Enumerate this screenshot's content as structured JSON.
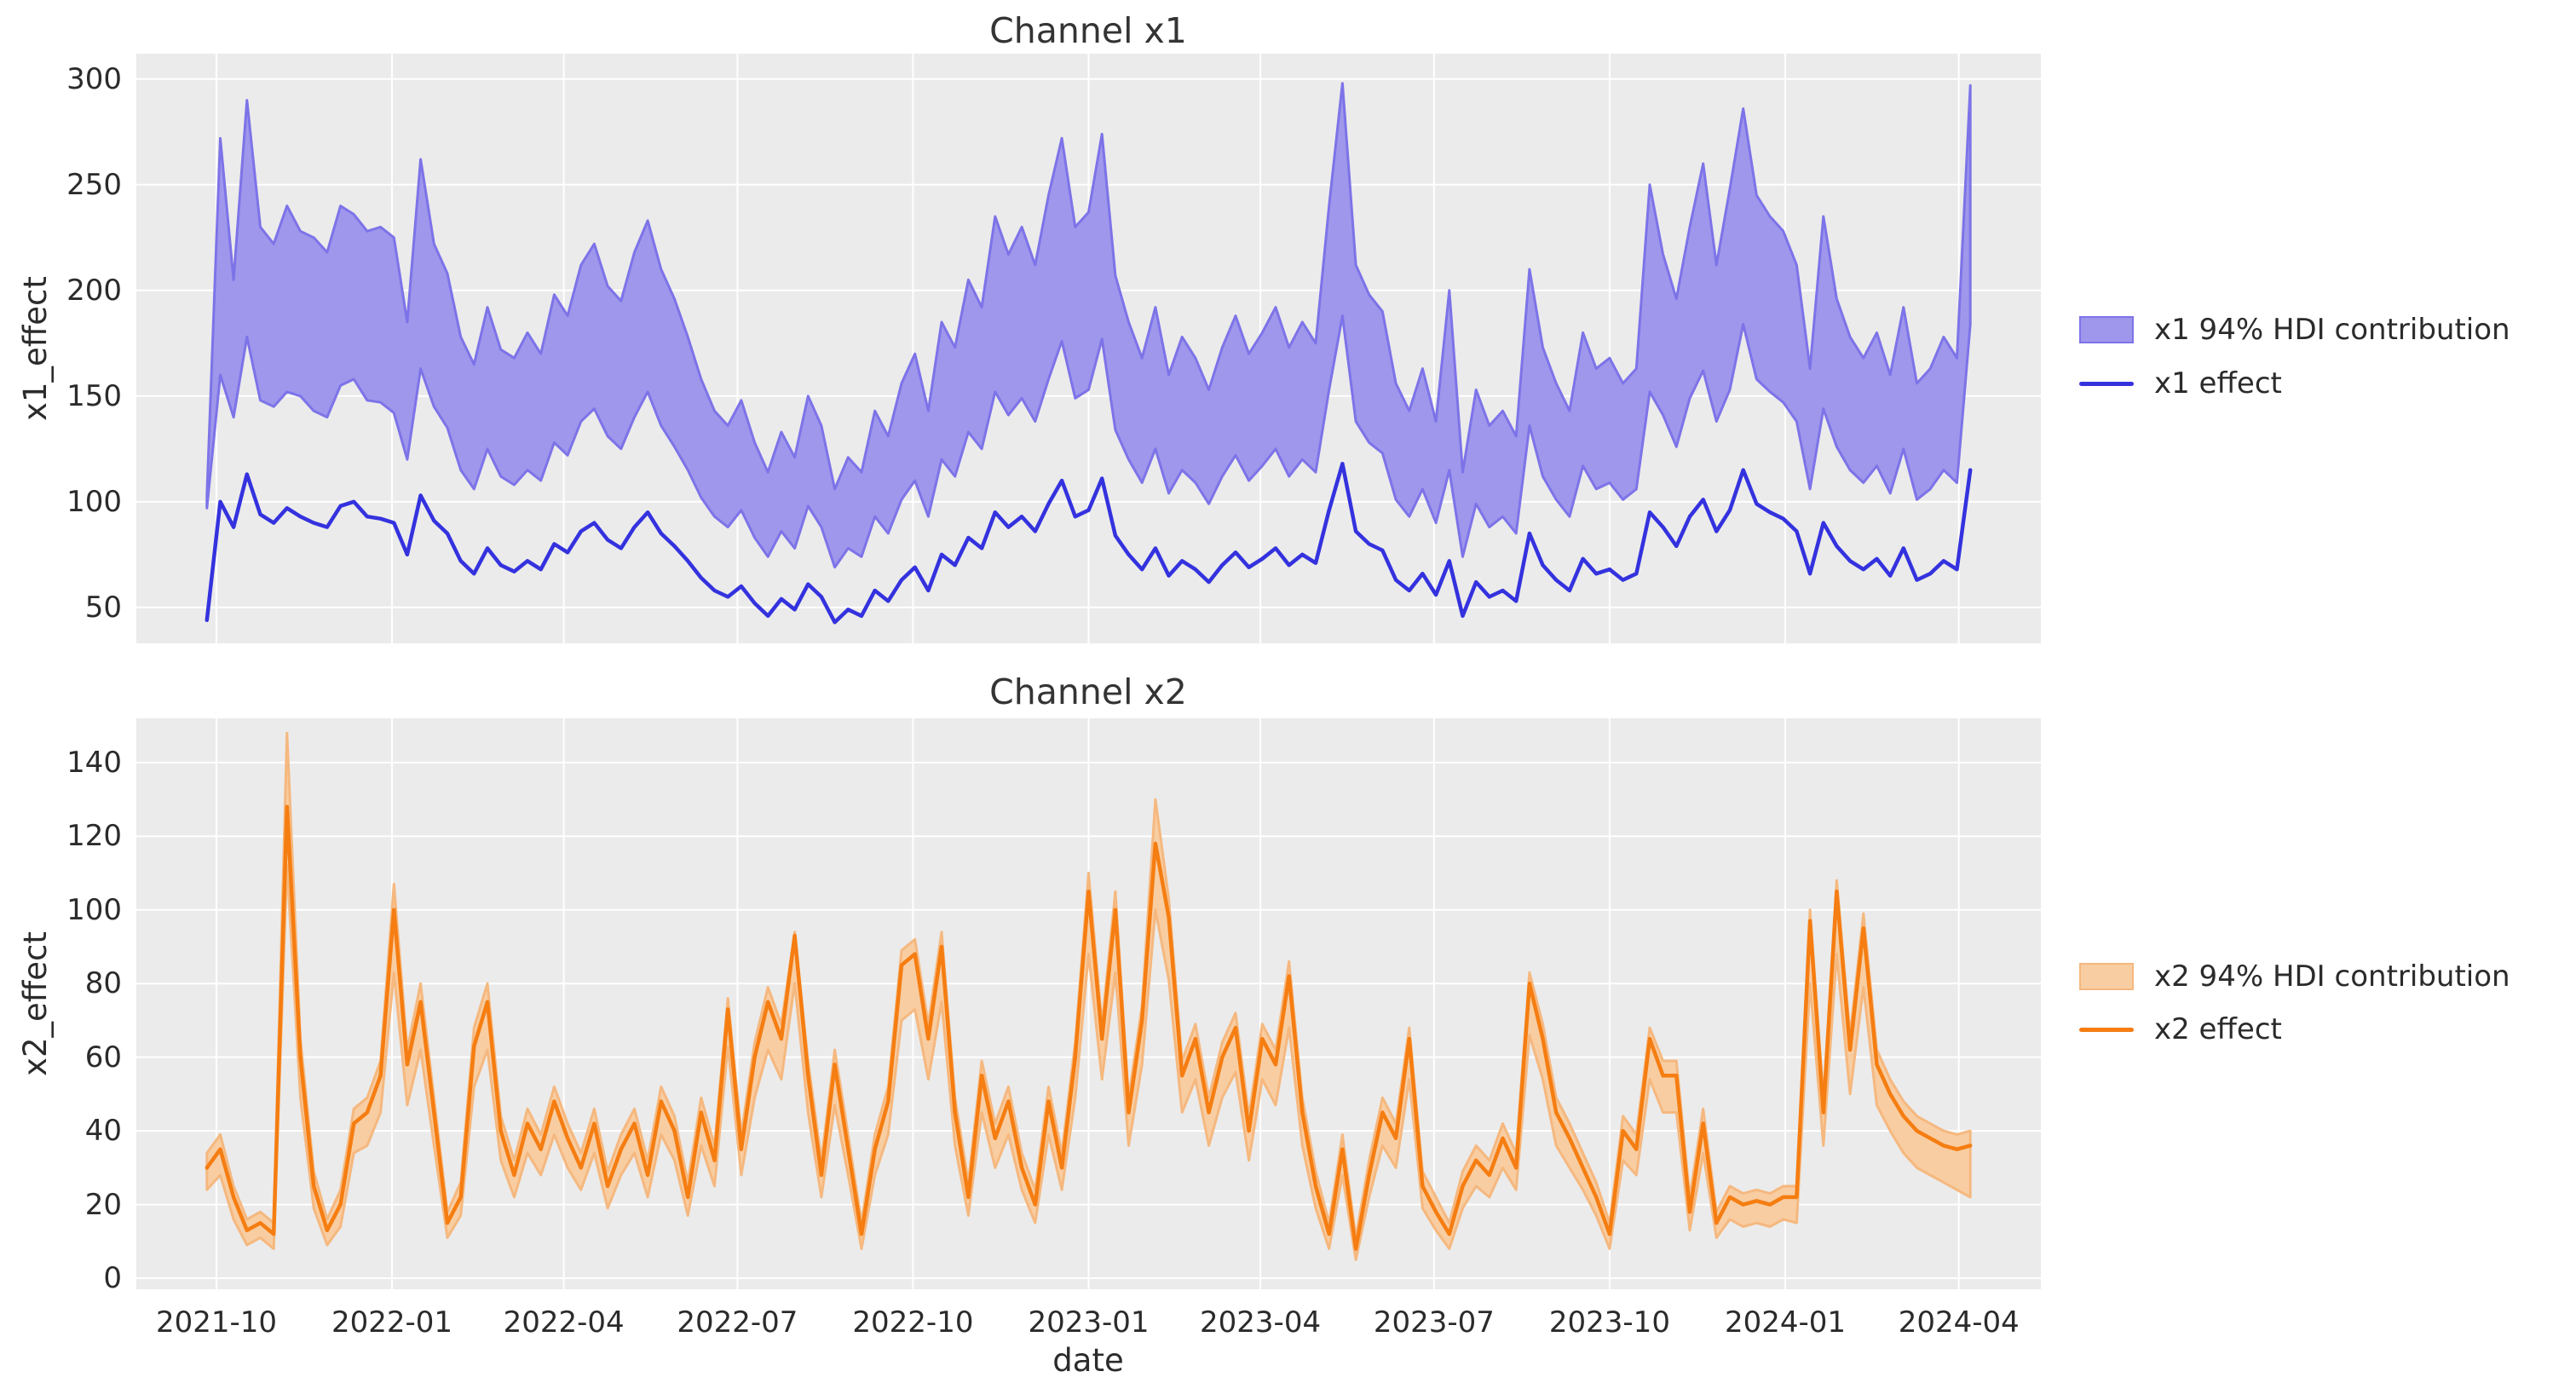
{
  "figure": {
    "background": "#ffffff",
    "plot_background": "#ebebeb",
    "grid_color": "#ffffff",
    "text_color": "#2b2b2b"
  },
  "xlabel": "date",
  "chart_data": [
    {
      "type": "line",
      "title": "Channel x1",
      "ylabel": "x1_effect",
      "x_start": "2021-09-26",
      "x_step_days": 7,
      "x_tick_labels": [
        "2021-10",
        "2022-01",
        "2022-04",
        "2022-07",
        "2022-10",
        "2023-01",
        "2023-04",
        "2023-07",
        "2023-10",
        "2024-01",
        "2024-04"
      ],
      "y_ticks": [
        50,
        100,
        150,
        200,
        250,
        300
      ],
      "ylim": [
        33,
        312
      ],
      "grid": true,
      "legend_position": "right",
      "colors": {
        "line": "#3432de",
        "band_fill": "#9f97eb",
        "band_edge": "#7d73e8"
      },
      "legend": [
        {
          "type": "patch",
          "label": "x1 94% HDI contribution"
        },
        {
          "type": "line",
          "label": "x1 effect"
        }
      ],
      "series": [
        {
          "name": "x1 94% HDI lower",
          "values": [
            97,
            160,
            140,
            178,
            148,
            145,
            152,
            150,
            143,
            140,
            155,
            158,
            148,
            147,
            142,
            120,
            163,
            145,
            135,
            115,
            106,
            125,
            112,
            108,
            115,
            110,
            128,
            122,
            138,
            144,
            131,
            125,
            140,
            152,
            136,
            126,
            115,
            102,
            93,
            88,
            96,
            83,
            74,
            86,
            78,
            98,
            88,
            69,
            78,
            74,
            93,
            85,
            101,
            110,
            93,
            120,
            112,
            133,
            125,
            152,
            141,
            149,
            138,
            158,
            176,
            149,
            153,
            177,
            134,
            120,
            109,
            125,
            104,
            115,
            109,
            99,
            112,
            122,
            110,
            117,
            125,
            112,
            120,
            114,
            153,
            188,
            138,
            128,
            123,
            101,
            93,
            106,
            90,
            115,
            74,
            99,
            88,
            93,
            85,
            136,
            112,
            101,
            93,
            117,
            106,
            109,
            101,
            106,
            152,
            141,
            126,
            149,
            162,
            138,
            153,
            184,
            158,
            152,
            147,
            138,
            106,
            144,
            126,
            115,
            109,
            117,
            104,
            125,
            101,
            106,
            115,
            109,
            184
          ]
        },
        {
          "name": "x1 94% HDI upper",
          "values": [
            103,
            272,
            205,
            290,
            230,
            222,
            240,
            228,
            225,
            218,
            240,
            236,
            228,
            230,
            225,
            185,
            262,
            222,
            208,
            178,
            165,
            192,
            172,
            168,
            180,
            170,
            198,
            188,
            212,
            222,
            202,
            195,
            218,
            233,
            210,
            196,
            178,
            158,
            143,
            136,
            148,
            128,
            114,
            133,
            121,
            150,
            136,
            106,
            121,
            114,
            143,
            131,
            156,
            170,
            143,
            185,
            173,
            205,
            192,
            235,
            217,
            230,
            212,
            245,
            272,
            230,
            237,
            274,
            207,
            185,
            168,
            192,
            160,
            178,
            168,
            153,
            173,
            188,
            170,
            180,
            192,
            173,
            185,
            175,
            240,
            298,
            212,
            198,
            190,
            156,
            143,
            163,
            138,
            200,
            114,
            153,
            136,
            143,
            131,
            210,
            173,
            156,
            143,
            180,
            163,
            168,
            156,
            163,
            250,
            217,
            196,
            230,
            260,
            212,
            248,
            286,
            245,
            235,
            228,
            212,
            163,
            235,
            196,
            178,
            168,
            180,
            160,
            192,
            156,
            163,
            178,
            168,
            297
          ]
        },
        {
          "name": "x1 effect",
          "values": [
            44,
            100,
            88,
            113,
            94,
            90,
            97,
            93,
            90,
            88,
            98,
            100,
            93,
            92,
            90,
            75,
            103,
            91,
            85,
            72,
            66,
            78,
            70,
            67,
            72,
            68,
            80,
            76,
            86,
            90,
            82,
            78,
            88,
            95,
            85,
            79,
            72,
            64,
            58,
            55,
            60,
            52,
            46,
            54,
            49,
            61,
            55,
            43,
            49,
            46,
            58,
            53,
            63,
            69,
            58,
            75,
            70,
            83,
            78,
            95,
            88,
            93,
            86,
            99,
            110,
            93,
            96,
            111,
            84,
            75,
            68,
            78,
            65,
            72,
            68,
            62,
            70,
            76,
            69,
            73,
            78,
            70,
            75,
            71,
            96,
            118,
            86,
            80,
            77,
            63,
            58,
            66,
            56,
            72,
            46,
            62,
            55,
            58,
            53,
            85,
            70,
            63,
            58,
            73,
            66,
            68,
            63,
            66,
            95,
            88,
            79,
            93,
            101,
            86,
            96,
            115,
            99,
            95,
            92,
            86,
            66,
            90,
            79,
            72,
            68,
            73,
            65,
            78,
            63,
            66,
            72,
            68,
            115
          ]
        }
      ]
    },
    {
      "type": "line",
      "title": "Channel x2",
      "ylabel": "x2_effect",
      "xlabel": "date",
      "x_start": "2021-09-26",
      "x_step_days": 7,
      "x_tick_labels": [
        "2021-10",
        "2022-01",
        "2022-04",
        "2022-07",
        "2022-10",
        "2023-01",
        "2023-04",
        "2023-07",
        "2023-10",
        "2024-01",
        "2024-04"
      ],
      "y_ticks": [
        0,
        20,
        40,
        60,
        80,
        100,
        120,
        140
      ],
      "ylim": [
        -3,
        152
      ],
      "grid": true,
      "legend_position": "right",
      "colors": {
        "line": "#f57d11",
        "band_fill": "#f8cda2",
        "band_edge": "#f5b87f"
      },
      "legend": [
        {
          "type": "patch",
          "label": "x2 94% HDI contribution"
        },
        {
          "type": "line",
          "label": "x2 effect"
        }
      ],
      "series": [
        {
          "name": "x2 94% HDI lower",
          "values": [
            24,
            28,
            16,
            9,
            11,
            8,
            112,
            49,
            19,
            9,
            14,
            34,
            36,
            45,
            83,
            47,
            62,
            36,
            11,
            17,
            52,
            62,
            32,
            22,
            34,
            28,
            39,
            30,
            24,
            34,
            19,
            28,
            34,
            22,
            39,
            32,
            17,
            36,
            25,
            63,
            28,
            49,
            62,
            54,
            80,
            45,
            22,
            47,
            28,
            8,
            28,
            39,
            70,
            73,
            54,
            75,
            36,
            17,
            45,
            30,
            39,
            24,
            15,
            39,
            24,
            49,
            88,
            54,
            83,
            36,
            58,
            100,
            81,
            45,
            54,
            36,
            49,
            56,
            32,
            54,
            47,
            68,
            36,
            19,
            8,
            28,
            5,
            22,
            36,
            30,
            54,
            19,
            13,
            8,
            19,
            25,
            22,
            30,
            24,
            66,
            54,
            36,
            30,
            24,
            17,
            8,
            32,
            28,
            54,
            45,
            45,
            13,
            34,
            11,
            16,
            14,
            15,
            14,
            16,
            15,
            80,
            36,
            88,
            50,
            79,
            47,
            40,
            34,
            30,
            28,
            26,
            24,
            22
          ]
        },
        {
          "name": "x2 94% HDI upper",
          "values": [
            34,
            39,
            25,
            16,
            18,
            15,
            148,
            65,
            29,
            16,
            24,
            46,
            49,
            59,
            107,
            62,
            80,
            49,
            18,
            26,
            68,
            80,
            44,
            32,
            46,
            39,
            52,
            42,
            34,
            46,
            29,
            39,
            46,
            32,
            52,
            44,
            26,
            49,
            36,
            76,
            39,
            64,
            79,
            69,
            94,
            59,
            32,
            62,
            39,
            15,
            39,
            52,
            89,
            92,
            69,
            94,
            49,
            26,
            59,
            42,
            52,
            34,
            24,
            52,
            34,
            64,
            110,
            69,
            105,
            49,
            74,
            130,
            103,
            59,
            69,
            49,
            64,
            72,
            44,
            69,
            62,
            86,
            49,
            29,
            15,
            39,
            11,
            32,
            49,
            42,
            68,
            29,
            22,
            15,
            29,
            36,
            32,
            42,
            34,
            83,
            69,
            49,
            42,
            34,
            26,
            15,
            44,
            39,
            68,
            59,
            59,
            22,
            46,
            18,
            25,
            23,
            24,
            23,
            25,
            25,
            100,
            49,
            108,
            66,
            99,
            62,
            54,
            48,
            44,
            42,
            40,
            39,
            40
          ]
        },
        {
          "name": "x2 effect",
          "values": [
            30,
            35,
            22,
            13,
            15,
            12,
            128,
            60,
            25,
            13,
            20,
            42,
            45,
            55,
            100,
            58,
            75,
            45,
            15,
            22,
            63,
            75,
            40,
            28,
            42,
            35,
            48,
            38,
            30,
            42,
            25,
            35,
            42,
            28,
            48,
            40,
            22,
            45,
            32,
            73,
            35,
            60,
            75,
            65,
            93,
            55,
            28,
            58,
            35,
            12,
            35,
            48,
            85,
            88,
            65,
            90,
            45,
            22,
            55,
            38,
            48,
            30,
            20,
            48,
            30,
            60,
            105,
            65,
            100,
            45,
            70,
            118,
            98,
            55,
            65,
            45,
            60,
            68,
            40,
            65,
            58,
            82,
            45,
            25,
            12,
            35,
            8,
            28,
            45,
            38,
            65,
            25,
            18,
            12,
            25,
            32,
            28,
            38,
            30,
            80,
            65,
            45,
            38,
            30,
            22,
            12,
            40,
            35,
            65,
            55,
            55,
            18,
            42,
            15,
            22,
            20,
            21,
            20,
            22,
            22,
            97,
            45,
            105,
            62,
            95,
            58,
            50,
            44,
            40,
            38,
            36,
            35,
            36
          ]
        }
      ]
    }
  ]
}
